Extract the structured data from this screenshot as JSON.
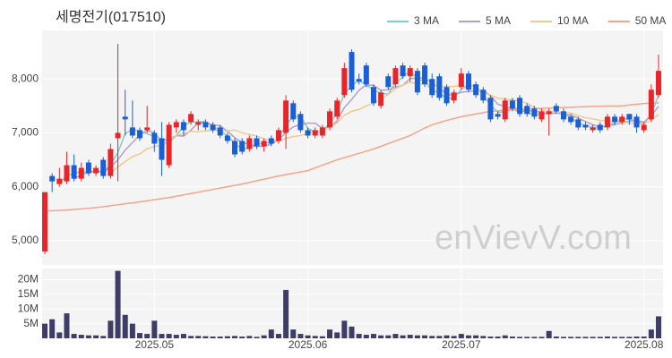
{
  "chart_data": {
    "type": "candlestick",
    "title": "세명전기(017510)",
    "watermark": "enVievV.com",
    "up_color": "#e8262a",
    "down_color": "#1a5fd6",
    "grid": true,
    "ylim": [
      4550,
      8900
    ],
    "yticks": [
      {
        "value": 5000,
        "label": "5,000"
      },
      {
        "value": 6000,
        "label": "6,000"
      },
      {
        "value": 7000,
        "label": "7,000"
      },
      {
        "value": 8000,
        "label": "8,000"
      }
    ],
    "categories": [
      null,
      null,
      null,
      null,
      null,
      null,
      null,
      null,
      null,
      null,
      null,
      null,
      null,
      null,
      null,
      "2025.05",
      null,
      null,
      null,
      null,
      null,
      null,
      null,
      null,
      null,
      null,
      null,
      null,
      null,
      null,
      null,
      null,
      null,
      null,
      null,
      null,
      "2025.06",
      null,
      null,
      null,
      null,
      null,
      null,
      null,
      null,
      null,
      null,
      null,
      null,
      null,
      null,
      null,
      null,
      null,
      null,
      null,
      null,
      "2025.07",
      null,
      null,
      null,
      null,
      null,
      null,
      null,
      null,
      null,
      null,
      null,
      null,
      null,
      null,
      null,
      null,
      null,
      null,
      null,
      null,
      null,
      null,
      null,
      null,
      "2025.08",
      null,
      null
    ],
    "candles": [
      [
        4800,
        5900,
        4750,
        5900
      ],
      [
        6200,
        6250,
        5900,
        6100
      ],
      [
        6050,
        6350,
        6000,
        6150
      ],
      [
        6100,
        6650,
        6050,
        6400
      ],
      [
        6400,
        6600,
        6100,
        6150
      ],
      [
        6150,
        6450,
        6100,
        6350
      ],
      [
        6450,
        6500,
        6200,
        6250
      ],
      [
        6250,
        6400,
        6200,
        6350
      ],
      [
        6500,
        6550,
        6150,
        6200
      ],
      [
        6200,
        6800,
        6150,
        6700
      ],
      [
        6900,
        8650,
        6100,
        7000
      ],
      [
        7300,
        7800,
        6950,
        7250
      ],
      [
        7100,
        7600,
        6900,
        6950
      ],
      [
        7050,
        7100,
        6850,
        6900
      ],
      [
        7050,
        7500,
        7000,
        7100
      ],
      [
        7000,
        7050,
        6650,
        6800
      ],
      [
        6900,
        7200,
        6200,
        6500
      ],
      [
        6400,
        7200,
        6350,
        7150
      ],
      [
        7100,
        7250,
        7000,
        7200
      ],
      [
        7200,
        7250,
        6950,
        7050
      ],
      [
        7200,
        7400,
        7150,
        7350
      ],
      [
        7150,
        7250,
        7050,
        7200
      ],
      [
        7200,
        7250,
        7050,
        7100
      ],
      [
        7150,
        7200,
        7000,
        7050
      ],
      [
        7100,
        7150,
        6900,
        6950
      ],
      [
        6950,
        7000,
        6800,
        6850
      ],
      [
        6850,
        6900,
        6550,
        6600
      ],
      [
        6850,
        6900,
        6600,
        6650
      ],
      [
        6700,
        6950,
        6650,
        6900
      ],
      [
        6900,
        6950,
        6700,
        6750
      ],
      [
        6750,
        6900,
        6650,
        6850
      ],
      [
        6900,
        6950,
        6750,
        6800
      ],
      [
        6850,
        7100,
        6800,
        7050
      ],
      [
        7000,
        7700,
        6700,
        7600
      ],
      [
        7550,
        7600,
        7200,
        7250
      ],
      [
        7350,
        7400,
        7000,
        7050
      ],
      [
        7050,
        7100,
        6900,
        6950
      ],
      [
        6950,
        7100,
        6900,
        7050
      ],
      [
        6950,
        7150,
        6900,
        7100
      ],
      [
        7100,
        7450,
        7050,
        7400
      ],
      [
        7300,
        7650,
        7250,
        7600
      ],
      [
        7700,
        8300,
        7650,
        8200
      ],
      [
        8500,
        8550,
        7750,
        7800
      ],
      [
        8000,
        8100,
        7900,
        7950
      ],
      [
        8250,
        8300,
        7850,
        7900
      ],
      [
        7850,
        7900,
        7500,
        7550
      ],
      [
        7500,
        7800,
        7450,
        7750
      ],
      [
        8050,
        8100,
        7800,
        7850
      ],
      [
        7900,
        8250,
        7850,
        8200
      ],
      [
        8250,
        8300,
        8000,
        8050
      ],
      [
        8050,
        8250,
        7950,
        8200
      ],
      [
        8150,
        8200,
        7700,
        7750
      ],
      [
        8250,
        8300,
        7850,
        7900
      ],
      [
        8000,
        8100,
        7650,
        7700
      ],
      [
        8050,
        8100,
        7600,
        7650
      ],
      [
        7850,
        7900,
        7500,
        7550
      ],
      [
        7600,
        7800,
        7550,
        7750
      ],
      [
        7850,
        8200,
        7800,
        8100
      ],
      [
        8100,
        8150,
        7750,
        7800
      ],
      [
        7900,
        7950,
        7650,
        7700
      ],
      [
        7800,
        7850,
        7550,
        7600
      ],
      [
        7650,
        7700,
        7200,
        7250
      ],
      [
        7350,
        7400,
        7250,
        7300
      ],
      [
        7250,
        7650,
        7200,
        7600
      ],
      [
        7600,
        7650,
        7400,
        7450
      ],
      [
        7650,
        7700,
        7300,
        7350
      ],
      [
        7500,
        7550,
        7300,
        7350
      ],
      [
        7450,
        7500,
        7250,
        7300
      ],
      [
        7250,
        7450,
        7200,
        7400
      ],
      [
        7350,
        7450,
        6950,
        7400
      ],
      [
        7500,
        7550,
        7350,
        7400
      ],
      [
        7400,
        7450,
        7200,
        7250
      ],
      [
        7300,
        7350,
        7150,
        7200
      ],
      [
        7250,
        7300,
        7050,
        7100
      ],
      [
        7150,
        7200,
        7050,
        7100
      ],
      [
        7050,
        7150,
        7000,
        7100
      ],
      [
        7150,
        7200,
        7000,
        7050
      ],
      [
        7100,
        7350,
        7050,
        7300
      ],
      [
        7300,
        7350,
        7150,
        7200
      ],
      [
        7200,
        7350,
        7150,
        7300
      ],
      [
        7350,
        7350,
        7150,
        7250
      ],
      [
        7300,
        7350,
        7000,
        7100
      ],
      [
        7050,
        7200,
        7000,
        7150
      ],
      [
        7250,
        7900,
        7200,
        7800
      ],
      [
        7700,
        8450,
        7650,
        8150
      ]
    ],
    "series": [
      {
        "name": "3 MA",
        "color": "#7ecfc9",
        "values": [
          null,
          null,
          6050,
          6217,
          6233,
          6300,
          6250,
          6317,
          6267,
          6417,
          6633,
          6983,
          7067,
          7033,
          6983,
          6933,
          6800,
          6817,
          6950,
          7133,
          7200,
          7200,
          7217,
          7117,
          7033,
          6950,
          6800,
          6700,
          6717,
          6767,
          6833,
          6800,
          6900,
          7150,
          7300,
          7300,
          7083,
          7017,
          7033,
          7183,
          7367,
          7733,
          7867,
          7983,
          7883,
          7800,
          7733,
          7717,
          7933,
          8033,
          8150,
          8000,
          7950,
          7783,
          7750,
          7633,
          7650,
          7800,
          7883,
          7867,
          7700,
          7517,
          7383,
          7383,
          7450,
          7467,
          7383,
          7333,
          7350,
          7367,
          7400,
          7350,
          7283,
          7183,
          7133,
          7100,
          7083,
          7150,
          7183,
          7267,
          7250,
          7217,
          7167,
          7350,
          7700
        ]
      },
      {
        "name": "5 MA",
        "color": "#b59fc9",
        "values": [
          null,
          null,
          null,
          null,
          6140,
          6230,
          6260,
          6300,
          6260,
          6370,
          6500,
          6680,
          6820,
          6960,
          7040,
          7000,
          6850,
          6890,
          6950,
          6940,
          7050,
          7190,
          7180,
          7150,
          7130,
          7030,
          6910,
          6820,
          6790,
          6750,
          6750,
          6790,
          6870,
          7010,
          7110,
          7150,
          7180,
          7180,
          7080,
          7110,
          7220,
          7470,
          7620,
          7790,
          7890,
          7880,
          7790,
          7800,
          7850,
          7880,
          8010,
          8010,
          8020,
          7920,
          7840,
          7710,
          7710,
          7750,
          7770,
          7780,
          7790,
          7690,
          7530,
          7490,
          7440,
          7390,
          7410,
          7410,
          7370,
          7350,
          7370,
          7350,
          7330,
          7270,
          7210,
          7150,
          7110,
          7130,
          7150,
          7190,
          7220,
          7230,
          7200,
          7320,
          7490
        ]
      },
      {
        "name": "10 MA",
        "color": "#f0c98d",
        "values": [
          null,
          null,
          null,
          null,
          null,
          null,
          null,
          null,
          null,
          6255,
          6365,
          6470,
          6560,
          6610,
          6705,
          6750,
          6765,
          6855,
          6955,
          6990,
          7025,
          7020,
          7035,
          7050,
          7035,
          7040,
          7050,
          7000,
          6970,
          6940,
          6890,
          6850,
          6845,
          6900,
          6930,
          6950,
          6985,
          7025,
          7045,
          7110,
          7185,
          7325,
          7400,
          7435,
          7500,
          7550,
          7630,
          7710,
          7820,
          7885,
          7945,
          7900,
          7910,
          7885,
          7860,
          7860,
          7860,
          7885,
          7845,
          7810,
          7750,
          7700,
          7640,
          7630,
          7610,
          7590,
          7550,
          7470,
          7430,
          7395,
          7380,
          7380,
          7370,
          7320,
          7280,
          7260,
          7230,
          7230,
          7210,
          7200,
          7185,
          7170,
          7165,
          7235,
          7340
        ]
      },
      {
        "name": "50 MA",
        "color": "#f2a58a",
        "values": [
          5550,
          5555,
          5560,
          5570,
          5580,
          5590,
          5600,
          5615,
          5630,
          5650,
          5665,
          5685,
          5700,
          5720,
          5740,
          5760,
          5780,
          5800,
          5825,
          5850,
          5875,
          5900,
          5925,
          5950,
          5975,
          6000,
          6025,
          6050,
          6080,
          6110,
          6140,
          6170,
          6200,
          6225,
          6250,
          6275,
          6300,
          6350,
          6400,
          6450,
          6500,
          6540,
          6580,
          6620,
          6660,
          6700,
          6750,
          6800,
          6850,
          6900,
          6950,
          7020,
          7090,
          7150,
          7190,
          7230,
          7265,
          7300,
          7325,
          7350,
          7375,
          7400,
          7410,
          7420,
          7430,
          7440,
          7445,
          7450,
          7455,
          7460,
          7465,
          7470,
          7475,
          7480,
          7485,
          7490,
          7493,
          7496,
          7498,
          7500,
          7515,
          7530,
          7545,
          7550,
          7555
        ]
      }
    ],
    "volume": {
      "color": "#3d3d66",
      "ylim": [
        0,
        23800000
      ],
      "yticks": [
        {
          "value": 5000000,
          "label": "5M"
        },
        {
          "value": 10000000,
          "label": "10M"
        },
        {
          "value": 15000000,
          "label": "15M"
        },
        {
          "value": 20000000,
          "label": "20M"
        }
      ],
      "values": [
        5000000,
        6500000,
        2000000,
        8500000,
        1500000,
        1200000,
        1000000,
        1000000,
        800000,
        6000000,
        23000000,
        8000000,
        5000000,
        1800000,
        1500000,
        6000000,
        1500000,
        1500000,
        1200000,
        1500000,
        800000,
        800000,
        700000,
        600000,
        600000,
        700000,
        800000,
        600000,
        800000,
        500000,
        1000000,
        3000000,
        1500000,
        16500000,
        3000000,
        1500000,
        1000000,
        800000,
        700000,
        3000000,
        2000000,
        6000000,
        4000000,
        1500000,
        1200000,
        1500000,
        1000000,
        1000000,
        1500000,
        1000000,
        1200000,
        1000000,
        1000000,
        800000,
        800000,
        1000000,
        800000,
        1500000,
        1000000,
        1000000,
        800000,
        600000,
        600000,
        1000000,
        600000,
        500000,
        500000,
        500000,
        500000,
        2500000,
        600000,
        500000,
        500000,
        500000,
        500000,
        500000,
        500000,
        600000,
        500000,
        500000,
        500000,
        600000,
        600000,
        3000000,
        7500000
      ]
    }
  }
}
